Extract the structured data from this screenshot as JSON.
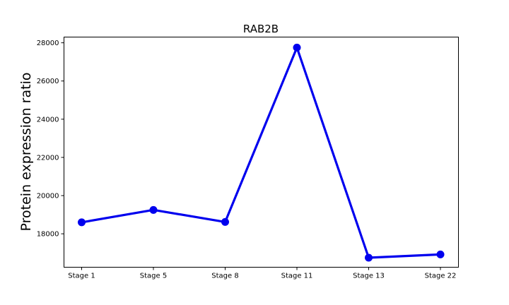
{
  "chart_data": {
    "type": "line",
    "title": "RAB2B",
    "xlabel": "",
    "ylabel": "Protein expression ratio",
    "categories": [
      "Stage 1",
      "Stage 5",
      "Stage 8",
      "Stage 11",
      "Stage 13",
      "Stage 22"
    ],
    "series": [
      {
        "values": [
          18600,
          19250,
          18620,
          27750,
          16750,
          16920
        ]
      }
    ],
    "ylim": [
      16250,
      28300
    ],
    "yticks": [
      18000,
      20000,
      22000,
      24000,
      26000,
      28000
    ],
    "grid": false,
    "line_color": "#0000ee",
    "axis_color": "#000000"
  }
}
